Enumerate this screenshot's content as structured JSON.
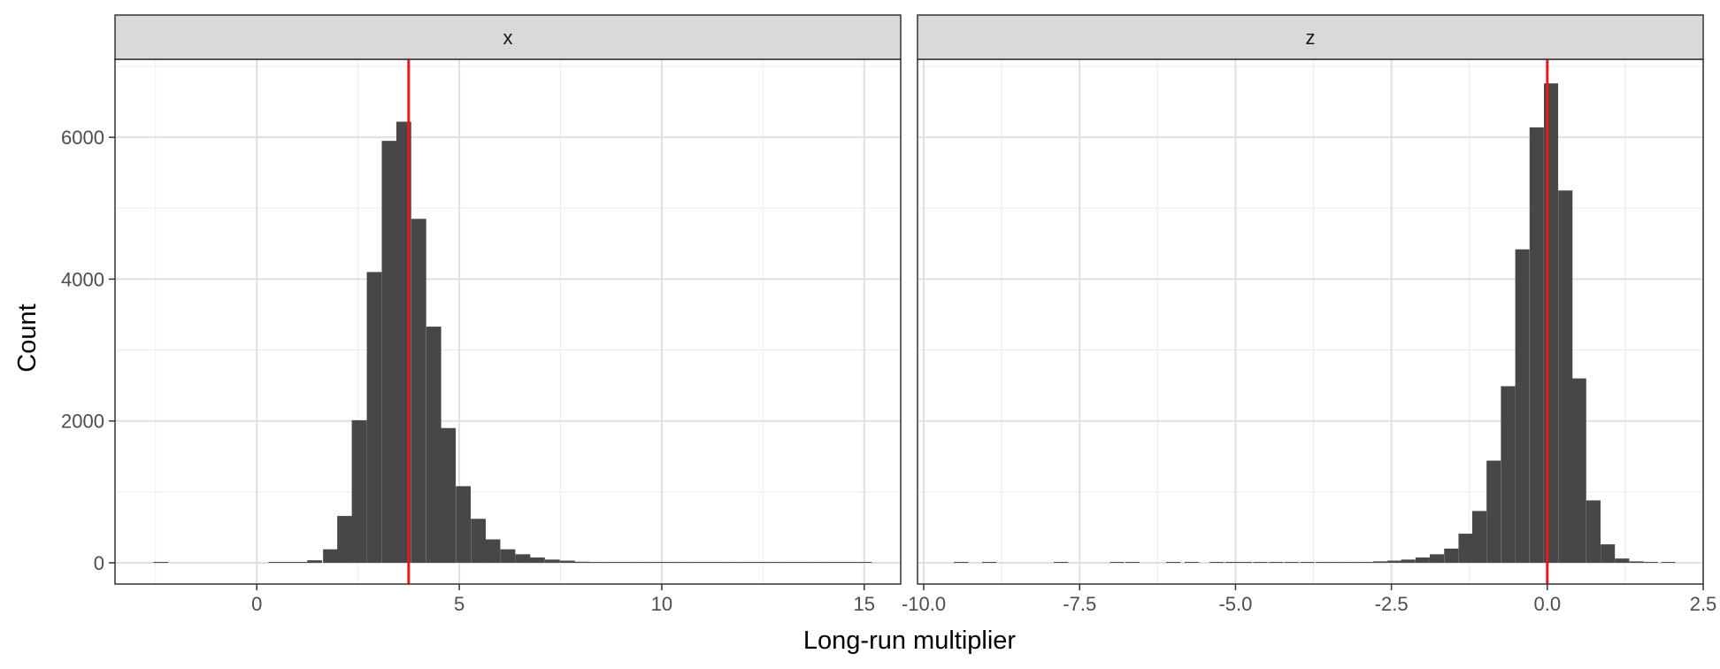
{
  "chart_data": {
    "type": "bar",
    "xlabel": "Long-run multiplier",
    "ylabel": "Count",
    "y_ticks": [
      0,
      2000,
      4000,
      6000
    ],
    "y_tick_labels": [
      "0",
      "2000",
      "4000",
      "6000"
    ],
    "ylim": [
      -300,
      7100
    ],
    "grid": true,
    "reference_line_color": "#e41a1c",
    "bar_color": "#474747",
    "panels": [
      {
        "strip_label": "x",
        "xlim": [
          -3.5,
          15.9
        ],
        "x_ticks": [
          0,
          5,
          10,
          15
        ],
        "x_tick_labels": [
          "0",
          "5",
          "10",
          "15"
        ],
        "reference_line": 3.75,
        "bin_width": 0.3667,
        "bins": [
          {
            "x": -2.37,
            "count": 3
          },
          {
            "x": 0.47,
            "count": 1
          },
          {
            "x": 0.83,
            "count": 2
          },
          {
            "x": 1.13,
            "count": 4
          },
          {
            "x": 1.43,
            "count": 35
          },
          {
            "x": 1.82,
            "count": 190
          },
          {
            "x": 2.17,
            "count": 660
          },
          {
            "x": 2.53,
            "count": 2010
          },
          {
            "x": 2.9,
            "count": 4100
          },
          {
            "x": 3.27,
            "count": 5950
          },
          {
            "x": 3.63,
            "count": 6220
          },
          {
            "x": 4.0,
            "count": 4850
          },
          {
            "x": 4.37,
            "count": 3330
          },
          {
            "x": 4.73,
            "count": 1900
          },
          {
            "x": 5.1,
            "count": 1080
          },
          {
            "x": 5.47,
            "count": 620
          },
          {
            "x": 5.83,
            "count": 330
          },
          {
            "x": 6.2,
            "count": 190
          },
          {
            "x": 6.57,
            "count": 120
          },
          {
            "x": 6.93,
            "count": 75
          },
          {
            "x": 7.3,
            "count": 45
          },
          {
            "x": 7.67,
            "count": 30
          },
          {
            "x": 8.03,
            "count": 15
          },
          {
            "x": 8.4,
            "count": 8
          },
          {
            "x": 8.77,
            "count": 5
          },
          {
            "x": 9.13,
            "count": 4
          },
          {
            "x": 9.5,
            "count": 3
          },
          {
            "x": 9.87,
            "count": 2
          },
          {
            "x": 10.23,
            "count": 2
          },
          {
            "x": 10.6,
            "count": 2
          },
          {
            "x": 10.97,
            "count": 2
          },
          {
            "x": 11.33,
            "count": 2
          },
          {
            "x": 11.7,
            "count": 1
          },
          {
            "x": 12.07,
            "count": 1
          },
          {
            "x": 12.43,
            "count": 1
          },
          {
            "x": 12.8,
            "count": 1
          },
          {
            "x": 13.17,
            "count": 1
          },
          {
            "x": 13.53,
            "count": 1
          },
          {
            "x": 13.9,
            "count": 1
          },
          {
            "x": 14.27,
            "count": 1
          },
          {
            "x": 14.63,
            "count": 1
          },
          {
            "x": 15.0,
            "count": 1
          }
        ]
      },
      {
        "strip_label": "z",
        "xlim": [
          -10.1,
          2.5
        ],
        "x_ticks": [
          -10.0,
          -7.5,
          -5.0,
          -2.5,
          0.0,
          2.5
        ],
        "x_tick_labels": [
          "-10.0",
          "-7.5",
          "-5.0",
          "-2.5",
          "0.0",
          "2.5"
        ],
        "reference_line": 0.0,
        "bin_width": 0.2281,
        "bins": [
          {
            "x": -9.4,
            "count": 2
          },
          {
            "x": -8.95,
            "count": 2
          },
          {
            "x": -7.8,
            "count": 1
          },
          {
            "x": -6.9,
            "count": 1
          },
          {
            "x": -6.65,
            "count": 1
          },
          {
            "x": -6.0,
            "count": 1
          },
          {
            "x": -5.7,
            "count": 1
          },
          {
            "x": -5.3,
            "count": 1
          },
          {
            "x": -5.05,
            "count": 1
          },
          {
            "x": -4.85,
            "count": 1
          },
          {
            "x": -4.6,
            "count": 1
          },
          {
            "x": -4.35,
            "count": 1
          },
          {
            "x": -4.1,
            "count": 1
          },
          {
            "x": -3.85,
            "count": 2
          },
          {
            "x": -3.6,
            "count": 2
          },
          {
            "x": -3.37,
            "count": 3
          },
          {
            "x": -3.14,
            "count": 5
          },
          {
            "x": -2.91,
            "count": 10
          },
          {
            "x": -2.68,
            "count": 20
          },
          {
            "x": -2.45,
            "count": 30
          },
          {
            "x": -2.23,
            "count": 45
          },
          {
            "x": -2.0,
            "count": 75
          },
          {
            "x": -1.77,
            "count": 120
          },
          {
            "x": -1.54,
            "count": 200
          },
          {
            "x": -1.31,
            "count": 410
          },
          {
            "x": -1.09,
            "count": 730
          },
          {
            "x": -0.86,
            "count": 1440
          },
          {
            "x": -0.63,
            "count": 2490
          },
          {
            "x": -0.4,
            "count": 4420
          },
          {
            "x": -0.17,
            "count": 6140
          },
          {
            "x": 0.06,
            "count": 6760
          },
          {
            "x": 0.29,
            "count": 5250
          },
          {
            "x": 0.51,
            "count": 2600
          },
          {
            "x": 0.74,
            "count": 880
          },
          {
            "x": 0.97,
            "count": 260
          },
          {
            "x": 1.2,
            "count": 60
          },
          {
            "x": 1.43,
            "count": 20
          },
          {
            "x": 1.66,
            "count": 5
          },
          {
            "x": 1.94,
            "count": 2
          }
        ]
      }
    ]
  }
}
